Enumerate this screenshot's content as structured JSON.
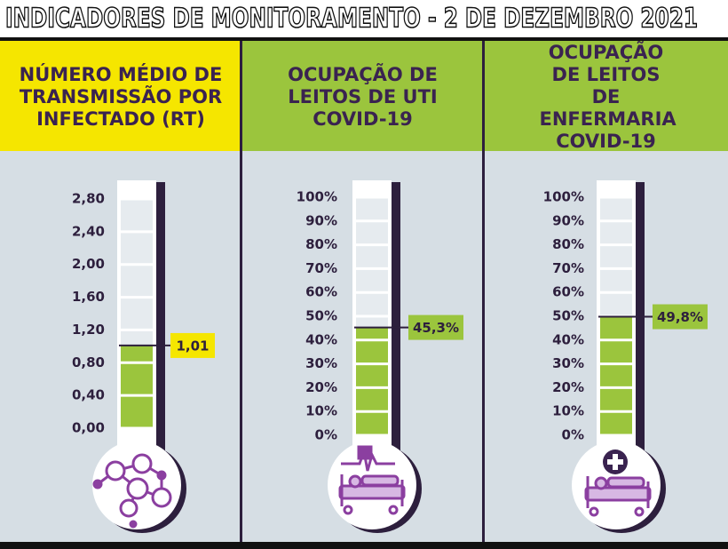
{
  "title": "INDICADORES DE MONITORAMENTO - 2 DE DEZEMBRO 2021",
  "chart_data": [
    {
      "type": "thermometer",
      "title": "NÚMERO MÉDIO DE TRANSMISSÃO POR INFECTADO (RT)",
      "color": "#9bc53d",
      "ylim": [
        0,
        2.8
      ],
      "yticks": [
        {
          "value": 0,
          "label": "0,00"
        },
        {
          "value": 0.4,
          "label": "0,40"
        },
        {
          "value": 0.8,
          "label": "0,80"
        },
        {
          "value": 1.2,
          "label": "1,20"
        },
        {
          "value": 1.6,
          "label": "1,60"
        },
        {
          "value": 2,
          "label": "2,00"
        },
        {
          "value": 2.4,
          "label": "2,40"
        },
        {
          "value": 2.8,
          "label": "2,80"
        }
      ],
      "value": 1.01,
      "value_label": "1,01",
      "label_color": "#f5e600"
    },
    {
      "type": "thermometer",
      "title": "OCUPAÇÃO DE LEITOS DE UTI COVID-19",
      "color": "#9bc53d",
      "ylim": [
        0,
        100
      ],
      "yticks": [
        {
          "value": 0,
          "label": "0%"
        },
        {
          "value": 10,
          "label": "10%"
        },
        {
          "value": 20,
          "label": "20%"
        },
        {
          "value": 30,
          "label": "30%"
        },
        {
          "value": 40,
          "label": "40%"
        },
        {
          "value": 50,
          "label": "50%"
        },
        {
          "value": 60,
          "label": "60%"
        },
        {
          "value": 70,
          "label": "70%"
        },
        {
          "value": 80,
          "label": "80%"
        },
        {
          "value": 90,
          "label": "90%"
        },
        {
          "value": 100,
          "label": "100%"
        }
      ],
      "value": 45.3,
      "value_label": "45,3%",
      "label_color": "#9bc53d"
    },
    {
      "type": "thermometer",
      "title": "OCUPAÇÃO DE LEITOS DE ENFERMARIA COVID-19",
      "color": "#9bc53d",
      "ylim": [
        0,
        100
      ],
      "yticks": [
        {
          "value": 0,
          "label": "0%"
        },
        {
          "value": 10,
          "label": "10%"
        },
        {
          "value": 20,
          "label": "20%"
        },
        {
          "value": 30,
          "label": "30%"
        },
        {
          "value": 40,
          "label": "40%"
        },
        {
          "value": 50,
          "label": "50%"
        },
        {
          "value": 60,
          "label": "60%"
        },
        {
          "value": 70,
          "label": "70%"
        },
        {
          "value": 80,
          "label": "80%"
        },
        {
          "value": 90,
          "label": "90%"
        },
        {
          "value": 100,
          "label": "100%"
        }
      ],
      "value": 49.8,
      "value_label": "49,8%",
      "label_color": "#9bc53d"
    }
  ]
}
